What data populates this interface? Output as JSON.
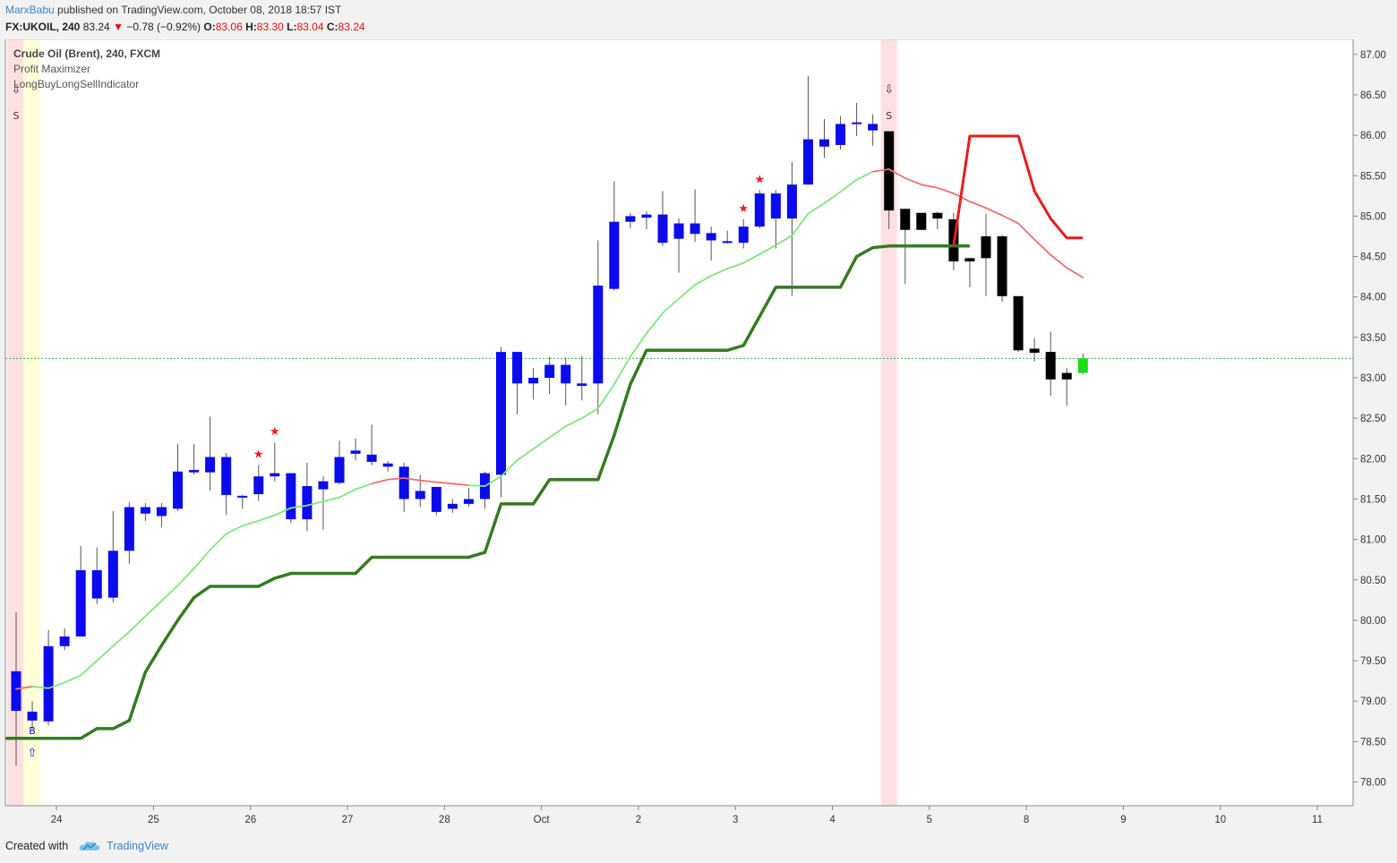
{
  "header": {
    "author": "MarxBabu",
    "published_text": "published on TradingView.com, October 08, 2018 18:57 IST",
    "symbol": "FX:UKOIL, 240",
    "last_price": "83.24",
    "change": "−0.78 (−0.92%)",
    "open_label": "O:",
    "open": "83.06",
    "high_label": "H:",
    "high": "83.30",
    "low_label": "L:",
    "low": "83.04",
    "close_label": "C:",
    "close": "83.24"
  },
  "legend": {
    "title": "Crude Oil (Brent), 240, FXCM",
    "indicator1": "Profit Maximizer",
    "indicator2": "LongBuyLongSellIndicator"
  },
  "footer": {
    "created_with": "Created with",
    "brand": "TradingView"
  },
  "colors": {
    "bull": "#0b0bee",
    "bear": "#000000",
    "last": "#16e016",
    "fast_up": "#7ee67e",
    "fast_down": "#f07070",
    "slow_up": "#367a22",
    "slow_down": "#e81c1c",
    "sell_band": "#ffe0e0",
    "buy_band": "#ffffd8",
    "price_line": "#19b019"
  },
  "chart_data": {
    "type": "candlestick",
    "ylim": [
      77.7,
      87.2
    ],
    "yticks": [
      "78.00",
      "78.50",
      "79.00",
      "79.50",
      "80.00",
      "80.50",
      "81.00",
      "81.50",
      "82.00",
      "82.50",
      "83.00",
      "83.50",
      "84.00",
      "84.50",
      "85.00",
      "85.50",
      "86.00",
      "86.50",
      "87.00"
    ],
    "xticks": [
      {
        "label": "24",
        "i": 2.5
      },
      {
        "label": "25",
        "i": 8.5
      },
      {
        "label": "26",
        "i": 14.5
      },
      {
        "label": "27",
        "i": 20.5
      },
      {
        "label": "28",
        "i": 26.5
      },
      {
        "label": "Oct",
        "i": 32.5
      },
      {
        "label": "2",
        "i": 38.5
      },
      {
        "label": "3",
        "i": 44.5
      },
      {
        "label": "4",
        "i": 50.5
      },
      {
        "label": "5",
        "i": 56.5
      },
      {
        "label": "8",
        "i": 62.5
      },
      {
        "label": "9",
        "i": 68.5
      },
      {
        "label": "10",
        "i": 74.5
      },
      {
        "label": "11",
        "i": 80.5
      }
    ],
    "current_price": 83.24,
    "candles": [
      [
        79.37,
        78.88,
        80.1,
        78.2,
        "bull"
      ],
      [
        78.76,
        78.87,
        79.0,
        78.65,
        "bull"
      ],
      [
        78.75,
        79.68,
        79.88,
        78.7,
        "bull"
      ],
      [
        79.68,
        79.8,
        79.9,
        79.63,
        "bull"
      ],
      [
        79.8,
        80.62,
        80.92,
        79.8,
        "bull"
      ],
      [
        80.62,
        80.27,
        80.9,
        80.2,
        "bull"
      ],
      [
        80.28,
        80.86,
        81.35,
        80.22,
        "bull"
      ],
      [
        80.86,
        81.4,
        81.46,
        80.7,
        "bull"
      ],
      [
        81.32,
        81.4,
        81.45,
        81.23,
        "bull"
      ],
      [
        81.29,
        81.4,
        81.45,
        81.15,
        "bull"
      ],
      [
        81.38,
        81.84,
        82.18,
        81.35,
        "bull"
      ],
      [
        81.83,
        81.86,
        82.18,
        81.8,
        "bull"
      ],
      [
        81.83,
        82.02,
        82.52,
        81.6,
        "bull"
      ],
      [
        81.55,
        82.02,
        82.07,
        81.3,
        "bull"
      ],
      [
        81.53,
        81.54,
        81.55,
        81.38,
        "bull"
      ],
      [
        81.56,
        81.78,
        81.92,
        81.48,
        "bull"
      ],
      [
        81.78,
        81.82,
        82.2,
        81.72,
        "bull"
      ],
      [
        81.82,
        81.25,
        81.82,
        81.2,
        "bull"
      ],
      [
        81.25,
        81.66,
        81.95,
        81.1,
        "bull"
      ],
      [
        81.62,
        81.72,
        81.78,
        81.12,
        "bull"
      ],
      [
        81.7,
        82.02,
        82.22,
        81.68,
        "bull"
      ],
      [
        82.06,
        82.1,
        82.25,
        81.98,
        "bull"
      ],
      [
        82.05,
        81.96,
        82.42,
        81.92,
        "bull"
      ],
      [
        81.9,
        81.94,
        81.97,
        81.84,
        "bull"
      ],
      [
        81.9,
        81.5,
        81.95,
        81.34,
        "bull"
      ],
      [
        81.5,
        81.6,
        81.8,
        81.4,
        "bull"
      ],
      [
        81.34,
        81.65,
        81.65,
        81.3,
        "bull"
      ],
      [
        81.38,
        81.44,
        81.5,
        81.33,
        "bull"
      ],
      [
        81.44,
        81.5,
        81.64,
        81.4,
        "bull"
      ],
      [
        81.5,
        81.82,
        81.84,
        81.38,
        "bull"
      ],
      [
        81.8,
        83.32,
        83.38,
        81.52,
        "bull"
      ],
      [
        82.93,
        83.32,
        83.32,
        82.55,
        "bull"
      ],
      [
        82.93,
        83.0,
        83.12,
        82.73,
        "bull"
      ],
      [
        83.0,
        83.16,
        83.26,
        82.8,
        "bull"
      ],
      [
        82.93,
        83.16,
        83.25,
        82.66,
        "bull"
      ],
      [
        82.93,
        82.9,
        83.27,
        82.72,
        "bull"
      ],
      [
        82.93,
        84.14,
        84.7,
        82.55,
        "bull"
      ],
      [
        84.1,
        84.93,
        85.43,
        84.08,
        "bull"
      ],
      [
        84.93,
        85.0,
        85.04,
        84.85,
        "bull"
      ],
      [
        84.98,
        85.02,
        85.06,
        84.84,
        "bull"
      ],
      [
        84.67,
        85.02,
        85.31,
        84.63,
        "bull"
      ],
      [
        84.72,
        84.91,
        84.97,
        84.3,
        "bull"
      ],
      [
        84.78,
        84.91,
        85.33,
        84.68,
        "bull"
      ],
      [
        84.7,
        84.79,
        84.87,
        84.45,
        "bull"
      ],
      [
        84.68,
        84.69,
        84.82,
        84.66,
        "bull"
      ],
      [
        84.67,
        84.87,
        84.96,
        84.6,
        "bull"
      ],
      [
        84.87,
        85.28,
        85.32,
        84.85,
        "bull"
      ],
      [
        84.97,
        85.28,
        85.32,
        84.6,
        "bull"
      ],
      [
        84.97,
        85.39,
        85.67,
        84.01,
        "bull"
      ],
      [
        85.39,
        85.95,
        86.73,
        85.39,
        "bull"
      ],
      [
        85.86,
        85.95,
        86.2,
        85.72,
        "bull"
      ],
      [
        85.88,
        86.14,
        86.24,
        85.82,
        "bull"
      ],
      [
        86.14,
        86.16,
        86.4,
        85.99,
        "bull"
      ],
      [
        86.06,
        86.14,
        86.26,
        85.87,
        "bull"
      ],
      [
        86.05,
        85.07,
        86.05,
        84.84,
        "bear"
      ],
      [
        85.09,
        84.83,
        85.09,
        84.16,
        "bear"
      ],
      [
        85.04,
        84.83,
        85.03,
        84.83,
        "bear"
      ],
      [
        85.04,
        84.97,
        85.05,
        84.84,
        "bear"
      ],
      [
        84.96,
        84.44,
        85.04,
        84.33,
        "bear"
      ],
      [
        84.48,
        84.44,
        84.48,
        84.12,
        "bear"
      ],
      [
        84.75,
        84.48,
        85.03,
        84.01,
        "bear"
      ],
      [
        84.75,
        84.01,
        84.77,
        83.94,
        "bear"
      ],
      [
        84.01,
        83.34,
        84.01,
        83.32,
        "bear"
      ],
      [
        83.36,
        83.31,
        83.49,
        83.2,
        "bear"
      ],
      [
        83.32,
        82.98,
        83.57,
        82.78,
        "bear"
      ],
      [
        83.06,
        82.98,
        83.12,
        82.65,
        "bear"
      ],
      [
        83.06,
        83.24,
        83.3,
        83.04,
        "last"
      ]
    ],
    "fast_line": [
      79.15,
      79.18,
      79.16,
      79.23,
      79.32,
      79.5,
      79.68,
      79.86,
      80.05,
      80.24,
      80.43,
      80.64,
      80.87,
      81.07,
      81.17,
      81.23,
      81.3,
      81.39,
      81.42,
      81.47,
      81.52,
      81.62,
      81.69,
      81.74,
      81.76,
      81.73,
      81.71,
      81.69,
      81.67,
      81.66,
      81.78,
      81.98,
      82.12,
      82.26,
      82.4,
      82.5,
      82.62,
      82.92,
      83.26,
      83.55,
      83.8,
      83.98,
      84.15,
      84.26,
      84.35,
      84.42,
      84.53,
      84.64,
      84.76,
      85.03,
      85.16,
      85.3,
      85.45,
      85.55,
      85.58,
      85.47,
      85.39,
      85.35,
      85.28,
      85.18,
      85.1,
      85.01,
      84.91,
      84.71,
      84.52,
      84.36,
      84.24
    ],
    "fast_color": [
      "up",
      "dn",
      "up",
      "up",
      "up",
      "up",
      "up",
      "up",
      "up",
      "up",
      "up",
      "up",
      "up",
      "up",
      "up",
      "up",
      "up",
      "up",
      "up",
      "up",
      "up",
      "up",
      "up",
      "dn",
      "dn",
      "dn",
      "dn",
      "dn",
      "dn",
      "up",
      "up",
      "up",
      "up",
      "up",
      "up",
      "up",
      "up",
      "up",
      "up",
      "up",
      "up",
      "up",
      "up",
      "up",
      "up",
      "up",
      "up",
      "up",
      "up",
      "up",
      "up",
      "up",
      "up",
      "up",
      "dn",
      "dn",
      "dn",
      "dn",
      "dn",
      "dn",
      "dn",
      "dn",
      "dn",
      "dn",
      "dn",
      "dn",
      "dn"
    ],
    "slow_up_line": [
      78.54,
      78.54,
      78.54,
      78.54,
      78.54,
      78.66,
      78.66,
      78.76,
      79.36,
      79.69,
      80.0,
      80.28,
      80.42,
      80.42,
      80.42,
      80.42,
      80.52,
      80.58,
      80.58,
      80.58,
      80.58,
      80.58,
      80.78,
      80.78,
      80.78,
      80.78,
      80.78,
      80.78,
      80.78,
      80.84,
      81.44,
      81.44,
      81.44,
      81.74,
      81.74,
      81.74,
      81.74,
      82.29,
      82.92,
      83.34,
      83.34,
      83.34,
      83.34,
      83.34,
      83.34,
      83.4,
      83.76,
      84.12,
      84.12,
      84.12,
      84.12,
      84.12,
      84.5,
      84.61,
      84.63,
      84.63,
      84.63,
      84.63,
      84.63,
      84.63
    ],
    "slow_down_line": [
      [
        58,
        84.63
      ],
      [
        59,
        85.99
      ],
      [
        60,
        85.99
      ],
      [
        61,
        85.99
      ],
      [
        62,
        85.99
      ],
      [
        63,
        85.31
      ],
      [
        64,
        84.97
      ],
      [
        65,
        84.73
      ],
      [
        66,
        84.73
      ]
    ]
  },
  "markers": {
    "sell_arrow": "⇩",
    "sell_letter": "S",
    "buy_arrow": "⇧",
    "buy_letter": "B",
    "star": "★"
  }
}
